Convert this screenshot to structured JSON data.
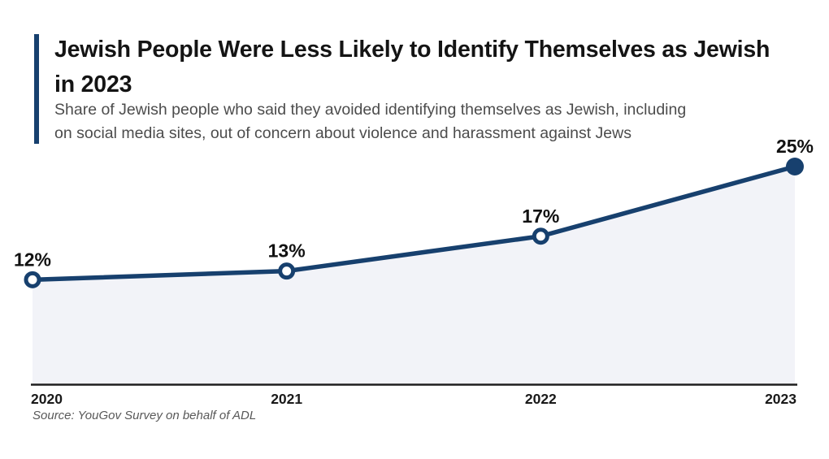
{
  "header": {
    "title": "Jewish People Were Less Likely to Identify Themselves as Jewish in 2023",
    "title_lines": [
      "Jewish People Were Less Likely to Identify Themselves as Jewish",
      "in 2023"
    ],
    "subtitle": "Share of Jewish people who said they avoided identifying themselves as Jewish, including on social media sites, out of concern about violence and harassment against Jews",
    "subtitle_lines": [
      "Share of Jewish people who said they avoided identifying themselves as Jewish, including",
      "on social media sites, out of concern about violence and harassment against Jews"
    ]
  },
  "chart_data": {
    "type": "area",
    "title": "Jewish People Were Less Likely to Identify Themselves as Jewish in 2023",
    "categories": [
      "2020",
      "2021",
      "2022",
      "2023"
    ],
    "values": [
      12,
      13,
      17,
      25
    ],
    "data_labels": [
      "12%",
      "13%",
      "17%",
      "25%"
    ],
    "unit": "%",
    "xlabel": "",
    "ylabel": "",
    "ylim": [
      0,
      25
    ],
    "grid": false,
    "legend": false,
    "highlight_index": 3,
    "line_color": "#17406E",
    "area_fill": "#F2F3F8",
    "marker_open_fill": "#FFFFFF",
    "axis_color": "#1F1F1F",
    "label_color": "#111111",
    "tick_color": "#191919"
  },
  "footer": {
    "source": "Source: YouGov Survey on behalf of ADL"
  },
  "colors": {
    "accent": "#17406E",
    "background": "#FFFFFF"
  }
}
